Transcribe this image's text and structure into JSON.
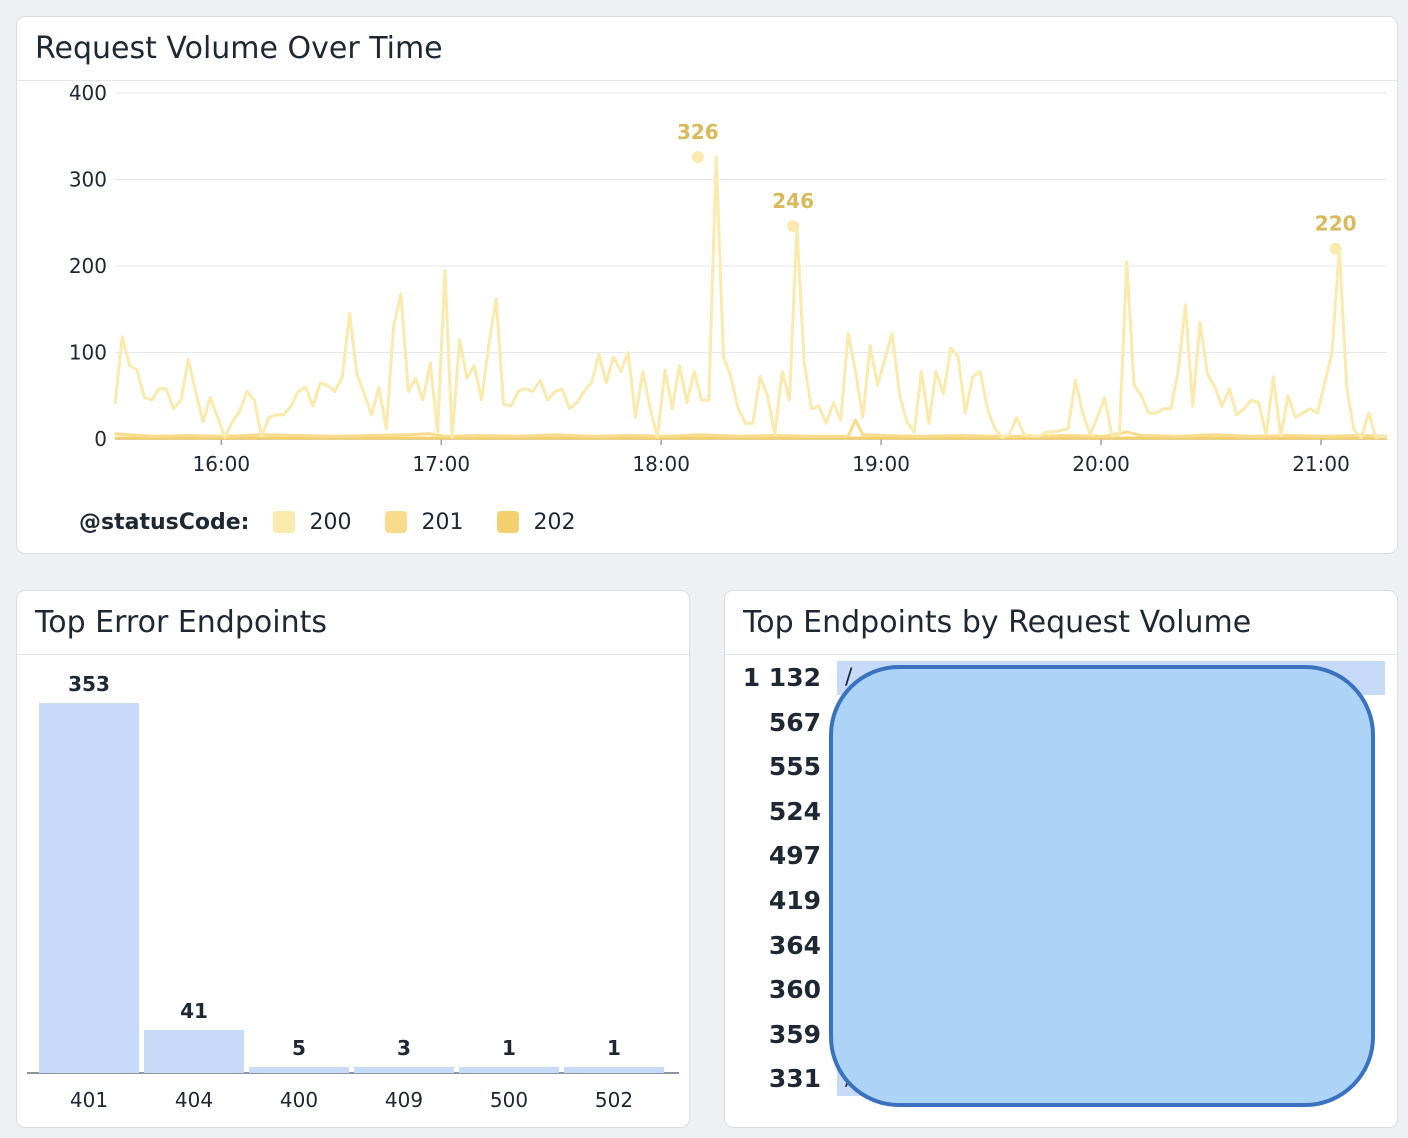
{
  "panels": {
    "volume_title": "Request Volume Over Time",
    "errors_title": "Top Error Endpoints",
    "top_title": "Top Endpoints by Request Volume"
  },
  "legend": {
    "key": "@statusCode:",
    "items": [
      {
        "label": "200",
        "color": "#fbeaad"
      },
      {
        "label": "201",
        "color": "#f8dc8b"
      },
      {
        "label": "202",
        "color": "#f4cf6e"
      }
    ]
  },
  "chart_data": [
    {
      "type": "line",
      "title": "Request Volume Over Time",
      "x_unit": "time of day",
      "x_range": [
        "15:31",
        "21:18"
      ],
      "x_ticks": [
        "16:00",
        "17:00",
        "18:00",
        "19:00",
        "20:00",
        "21:00"
      ],
      "ylim": [
        0,
        400
      ],
      "y_ticks": [
        0,
        100,
        200,
        300,
        400
      ],
      "grid": true,
      "legend_position": "bottom-left",
      "annotations": [
        {
          "x": "18:10",
          "y": 326,
          "label": "326"
        },
        {
          "x": "18:36",
          "y": 246,
          "label": "246"
        },
        {
          "x": "21:04",
          "y": 220,
          "label": "220"
        }
      ],
      "series": [
        {
          "name": "200",
          "color": "#fbeaad",
          "points": [
            [
              "15:31",
              40
            ],
            [
              "15:33",
              118
            ],
            [
              "15:35",
              85
            ],
            [
              "15:37",
              80
            ],
            [
              "15:39",
              48
            ],
            [
              "15:41",
              45
            ],
            [
              "15:43",
              58
            ],
            [
              "15:45",
              58
            ],
            [
              "15:47",
              35
            ],
            [
              "15:49",
              45
            ],
            [
              "15:51",
              92
            ],
            [
              "15:53",
              55
            ],
            [
              "15:55",
              20
            ],
            [
              "15:57",
              48
            ],
            [
              "15:59",
              25
            ],
            [
              "16:01",
              2
            ],
            [
              "16:03",
              20
            ],
            [
              "16:05",
              32
            ],
            [
              "16:07",
              55
            ],
            [
              "16:09",
              45
            ],
            [
              "16:11",
              3
            ],
            [
              "16:13",
              25
            ],
            [
              "16:15",
              28
            ],
            [
              "16:17",
              28
            ],
            [
              "16:19",
              38
            ],
            [
              "16:21",
              55
            ],
            [
              "16:23",
              60
            ],
            [
              "16:25",
              38
            ],
            [
              "16:27",
              65
            ],
            [
              "16:29",
              62
            ],
            [
              "16:31",
              55
            ],
            [
              "16:33",
              72
            ],
            [
              "16:35",
              145
            ],
            [
              "16:37",
              75
            ],
            [
              "16:39",
              52
            ],
            [
              "16:41",
              28
            ],
            [
              "16:43",
              60
            ],
            [
              "16:45",
              12
            ],
            [
              "16:47",
              130
            ],
            [
              "16:49",
              168
            ],
            [
              "16:51",
              55
            ],
            [
              "16:53",
              70
            ],
            [
              "16:55",
              45
            ],
            [
              "16:57",
              88
            ],
            [
              "16:59",
              8
            ],
            [
              "17:01",
              195
            ],
            [
              "17:03",
              2
            ],
            [
              "17:05",
              115
            ],
            [
              "17:07",
              70
            ],
            [
              "17:09",
              85
            ],
            [
              "17:11",
              45
            ],
            [
              "17:13",
              110
            ],
            [
              "17:15",
              162
            ],
            [
              "17:17",
              40
            ],
            [
              "17:19",
              38
            ],
            [
              "17:21",
              55
            ],
            [
              "17:23",
              58
            ],
            [
              "17:25",
              55
            ],
            [
              "17:27",
              68
            ],
            [
              "17:29",
              45
            ],
            [
              "17:31",
              55
            ],
            [
              "17:33",
              58
            ],
            [
              "17:35",
              35
            ],
            [
              "17:37",
              42
            ],
            [
              "17:39",
              55
            ],
            [
              "17:41",
              65
            ],
            [
              "17:43",
              98
            ],
            [
              "17:45",
              65
            ],
            [
              "17:47",
              95
            ],
            [
              "17:49",
              78
            ],
            [
              "17:51",
              100
            ],
            [
              "17:53",
              25
            ],
            [
              "17:55",
              78
            ],
            [
              "17:57",
              35
            ],
            [
              "17:59",
              2
            ],
            [
              "18:01",
              80
            ],
            [
              "18:03",
              35
            ],
            [
              "18:05",
              85
            ],
            [
              "18:07",
              42
            ],
            [
              "18:09",
              78
            ],
            [
              "18:11",
              45
            ],
            [
              "18:13",
              45
            ],
            [
              "18:15",
              326
            ],
            [
              "18:17",
              95
            ],
            [
              "18:19",
              72
            ],
            [
              "18:21",
              35
            ],
            [
              "18:23",
              18
            ],
            [
              "18:25",
              18
            ],
            [
              "18:27",
              72
            ],
            [
              "18:29",
              50
            ],
            [
              "18:31",
              5
            ],
            [
              "18:33",
              78
            ],
            [
              "18:35",
              45
            ],
            [
              "18:37",
              246
            ],
            [
              "18:39",
              88
            ],
            [
              "18:41",
              35
            ],
            [
              "18:43",
              38
            ],
            [
              "18:45",
              18
            ],
            [
              "18:47",
              42
            ],
            [
              "18:49",
              22
            ],
            [
              "18:51",
              122
            ],
            [
              "18:53",
              78
            ],
            [
              "18:55",
              25
            ],
            [
              "18:57",
              108
            ],
            [
              "18:59",
              62
            ],
            [
              "19:01",
              92
            ],
            [
              "19:03",
              122
            ],
            [
              "19:05",
              52
            ],
            [
              "19:07",
              20
            ],
            [
              "19:09",
              8
            ],
            [
              "19:11",
              78
            ],
            [
              "19:13",
              18
            ],
            [
              "19:15",
              78
            ],
            [
              "19:17",
              52
            ],
            [
              "19:19",
              105
            ],
            [
              "19:21",
              95
            ],
            [
              "19:23",
              30
            ],
            [
              "19:25",
              72
            ],
            [
              "19:27",
              78
            ],
            [
              "19:29",
              35
            ],
            [
              "19:31",
              12
            ],
            [
              "19:33",
              2
            ],
            [
              "19:35",
              5
            ],
            [
              "19:37",
              25
            ],
            [
              "19:39",
              5
            ],
            [
              "19:41",
              4
            ],
            [
              "19:43",
              3
            ],
            [
              "19:45",
              8
            ],
            [
              "19:47",
              8
            ],
            [
              "19:49",
              10
            ],
            [
              "19:51",
              12
            ],
            [
              "19:53",
              68
            ],
            [
              "19:55",
              30
            ],
            [
              "19:57",
              5
            ],
            [
              "19:59",
              25
            ],
            [
              "20:01",
              48
            ],
            [
              "20:03",
              3
            ],
            [
              "20:05",
              5
            ],
            [
              "20:07",
              205
            ],
            [
              "20:09",
              62
            ],
            [
              "20:11",
              50
            ],
            [
              "20:13",
              30
            ],
            [
              "20:15",
              30
            ],
            [
              "20:17",
              35
            ],
            [
              "20:19",
              35
            ],
            [
              "20:21",
              78
            ],
            [
              "20:23",
              155
            ],
            [
              "20:25",
              38
            ],
            [
              "20:27",
              135
            ],
            [
              "20:29",
              75
            ],
            [
              "20:31",
              60
            ],
            [
              "20:33",
              38
            ],
            [
              "20:35",
              58
            ],
            [
              "20:37",
              28
            ],
            [
              "20:39",
              35
            ],
            [
              "20:41",
              45
            ],
            [
              "20:43",
              42
            ],
            [
              "20:45",
              5
            ],
            [
              "20:47",
              72
            ],
            [
              "20:49",
              3
            ],
            [
              "20:51",
              50
            ],
            [
              "20:53",
              25
            ],
            [
              "20:55",
              30
            ],
            [
              "20:57",
              35
            ],
            [
              "20:59",
              30
            ],
            [
              "21:01",
              65
            ],
            [
              "21:03",
              100
            ],
            [
              "21:05",
              220
            ],
            [
              "21:07",
              60
            ],
            [
              "21:09",
              10
            ],
            [
              "21:11",
              2
            ],
            [
              "21:13",
              30
            ],
            [
              "21:15",
              2
            ],
            [
              "21:17",
              3
            ],
            [
              "21:18",
              2
            ]
          ]
        },
        {
          "name": "201",
          "color": "#f8dc8b",
          "points": [
            [
              "15:31",
              6
            ],
            [
              "15:41",
              3
            ],
            [
              "15:51",
              4
            ],
            [
              "16:01",
              3
            ],
            [
              "16:11",
              5
            ],
            [
              "16:21",
              4
            ],
            [
              "16:31",
              3
            ],
            [
              "16:41",
              4
            ],
            [
              "16:51",
              5
            ],
            [
              "16:57",
              6
            ],
            [
              "17:01",
              3
            ],
            [
              "17:11",
              4
            ],
            [
              "17:21",
              3
            ],
            [
              "17:31",
              5
            ],
            [
              "17:41",
              3
            ],
            [
              "17:51",
              4
            ],
            [
              "18:01",
              3
            ],
            [
              "18:11",
              5
            ],
            [
              "18:21",
              3
            ],
            [
              "18:31",
              4
            ],
            [
              "18:41",
              3
            ],
            [
              "18:51",
              3
            ],
            [
              "18:53",
              22
            ],
            [
              "18:55",
              5
            ],
            [
              "19:01",
              4
            ],
            [
              "19:11",
              3
            ],
            [
              "19:21",
              4
            ],
            [
              "19:31",
              3
            ],
            [
              "19:41",
              3
            ],
            [
              "19:51",
              4
            ],
            [
              "20:01",
              3
            ],
            [
              "20:07",
              8
            ],
            [
              "20:11",
              4
            ],
            [
              "20:21",
              3
            ],
            [
              "20:31",
              5
            ],
            [
              "20:41",
              3
            ],
            [
              "20:51",
              4
            ],
            [
              "21:01",
              3
            ],
            [
              "21:11",
              4
            ],
            [
              "21:18",
              3
            ]
          ]
        },
        {
          "name": "202",
          "color": "#f4cf6e",
          "points": [
            [
              "15:31",
              1
            ],
            [
              "16:01",
              1
            ],
            [
              "16:31",
              1
            ],
            [
              "17:01",
              1
            ],
            [
              "17:31",
              1
            ],
            [
              "18:01",
              1
            ],
            [
              "18:31",
              1
            ],
            [
              "19:01",
              1
            ],
            [
              "19:31",
              1
            ],
            [
              "20:01",
              1
            ],
            [
              "20:31",
              1
            ],
            [
              "21:01",
              1
            ],
            [
              "21:18",
              1
            ]
          ]
        }
      ]
    },
    {
      "type": "bar",
      "title": "Top Error Endpoints",
      "categories": [
        "401",
        "404",
        "400",
        "409",
        "500",
        "502"
      ],
      "values": [
        353,
        41,
        5,
        3,
        1,
        1
      ],
      "bar_color": "#c7dbf8"
    },
    {
      "type": "bar",
      "orientation": "horizontal",
      "title": "Top Endpoints by Request Volume",
      "categories": [
        "",
        "",
        "",
        "",
        "",
        "",
        "",
        "",
        "",
        ""
      ],
      "values": [
        1132,
        567,
        555,
        524,
        497,
        419,
        364,
        360,
        359,
        331
      ],
      "value_labels": [
        "1 132",
        "567",
        "555",
        "524",
        "497",
        "419",
        "364",
        "360",
        "359",
        "331"
      ],
      "bar_color": "#c7dbf8",
      "visible_label_fragments": [
        "/",
        "/"
      ],
      "note": "endpoint names obscured by a drawn blue redaction shape",
      "redaction_color": "#add3f7",
      "redaction_border_color": "#3a72c0"
    }
  ]
}
